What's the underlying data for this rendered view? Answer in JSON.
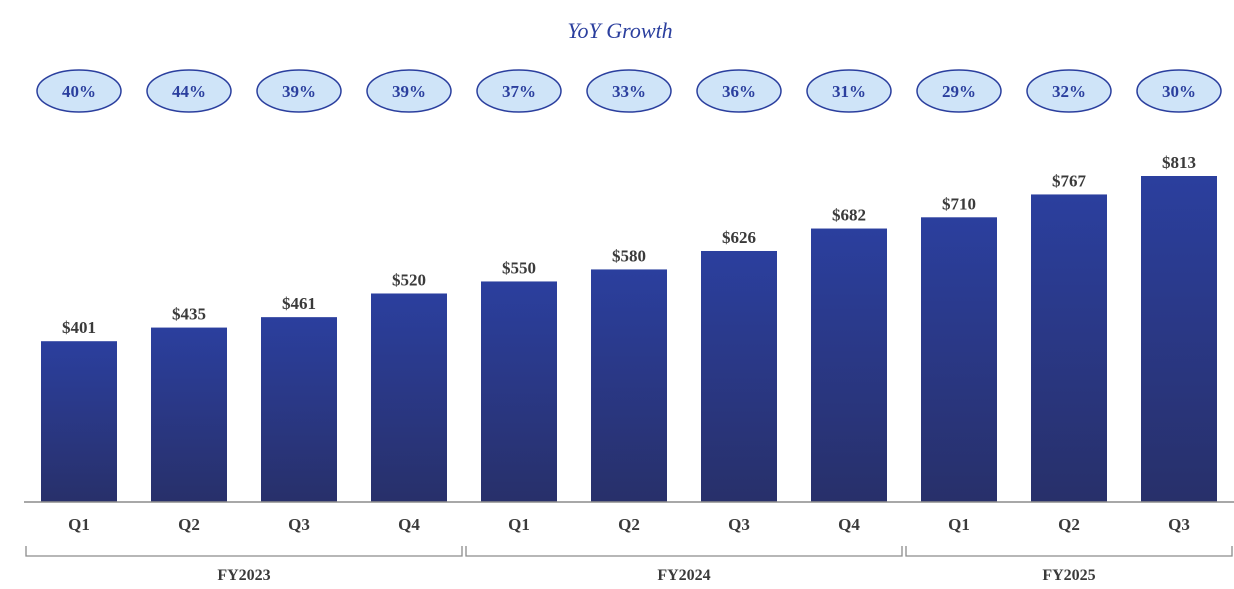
{
  "colors": {
    "bar_top": "#2b3f9e",
    "bar_bottom": "#28306a",
    "pill_fill": "#cfe4f8",
    "pill_stroke": "#2b3f9e",
    "axis": "#8c8c8c",
    "text": "#3a3a3a"
  },
  "chart_data": {
    "type": "bar",
    "title": "",
    "growth_title": "YoY Growth",
    "categories": [
      "Q1",
      "Q2",
      "Q3",
      "Q4",
      "Q1",
      "Q2",
      "Q3",
      "Q4",
      "Q1",
      "Q2",
      "Q3"
    ],
    "values": [
      401,
      435,
      461,
      520,
      550,
      580,
      626,
      682,
      710,
      767,
      813
    ],
    "value_labels": [
      "$401",
      "$435",
      "$461",
      "$520",
      "$550",
      "$580",
      "$626",
      "$682",
      "$710",
      "$767",
      "$813"
    ],
    "yoy_growth": [
      "40%",
      "44%",
      "39%",
      "39%",
      "37%",
      "33%",
      "36%",
      "31%",
      "29%",
      "32%",
      "30%"
    ],
    "groups": [
      {
        "label": "FY2023",
        "start": 0,
        "end": 3
      },
      {
        "label": "FY2024",
        "start": 4,
        "end": 7
      },
      {
        "label": "FY2025",
        "start": 8,
        "end": 10
      }
    ],
    "xlabel": "",
    "ylabel": "",
    "ylim": [
      0,
      813
    ],
    "grid": false,
    "legend": "none"
  }
}
